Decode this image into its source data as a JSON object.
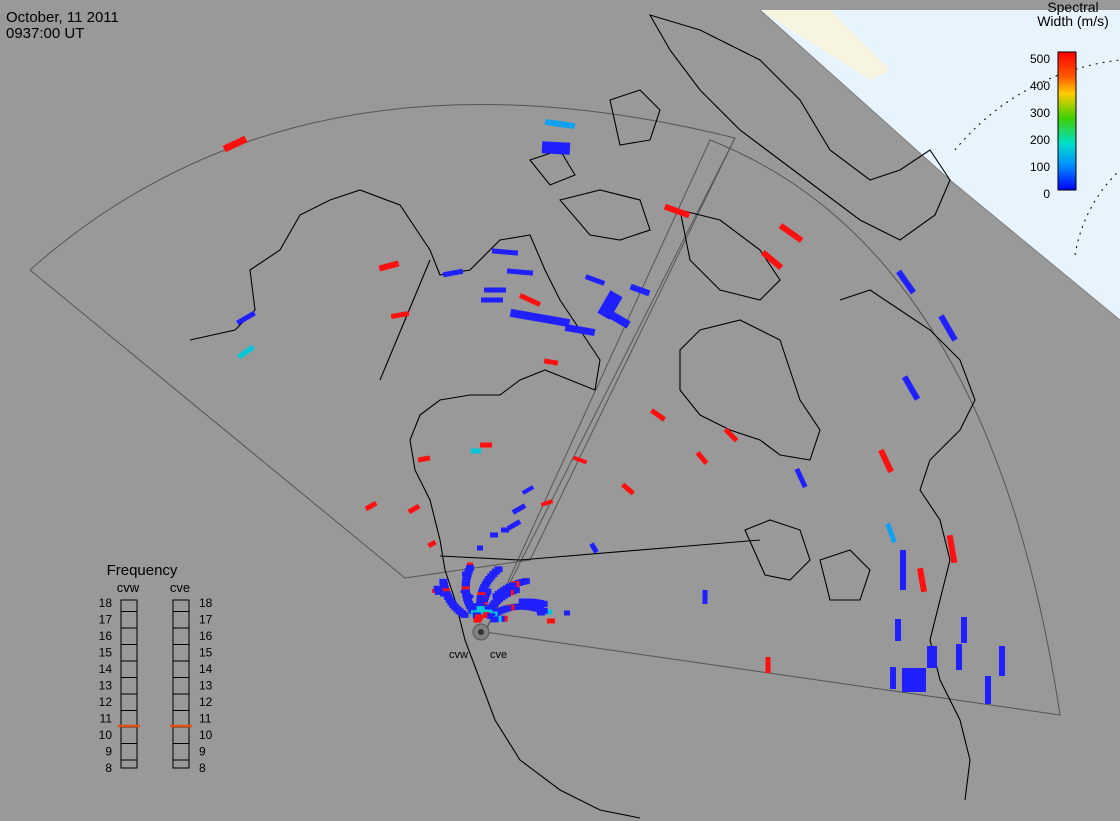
{
  "header": {
    "date": "October, 11 2011",
    "time": "0937:00 UT"
  },
  "colorbar": {
    "title_line1": "Spectral",
    "title_line2": "Width (m/s)",
    "ticks": [
      "500",
      "400",
      "300",
      "200",
      "100",
      "0"
    ],
    "colors": [
      "#ff0000",
      "#ff8c00",
      "#ffd700",
      "#00c800",
      "#00e5d0",
      "#0070ff",
      "#0000ff"
    ]
  },
  "frequency": {
    "title": "Frequency",
    "radar_left": "cvw",
    "radar_right": "cve",
    "ticks": [
      "18",
      "17",
      "16",
      "15",
      "14",
      "13",
      "12",
      "11",
      "10",
      "9",
      "8"
    ],
    "marker_color": "#e05010"
  },
  "radars": {
    "west_label": "cvw",
    "east_label": "cve"
  },
  "colors": {
    "background": "#999999",
    "fov_fill": "#909090",
    "polar_day": "#e8f4fd",
    "land_outline": "#000000",
    "low_width": "#2020ff",
    "high_width": "#ff1010",
    "mid_width": "#00c8d8"
  }
}
